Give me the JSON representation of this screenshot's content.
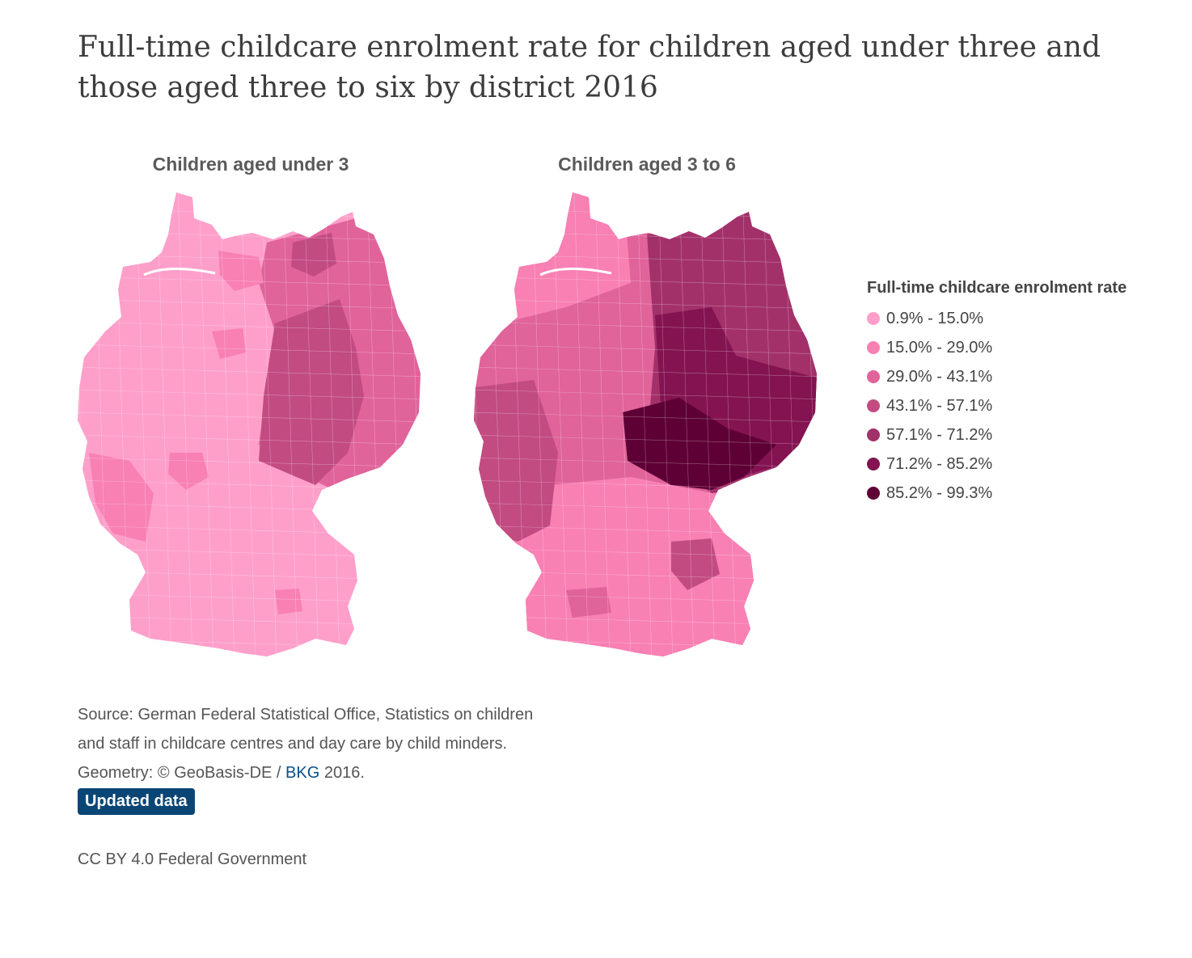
{
  "title": "Full-time childcare enrolment rate for children aged under three and those aged three to six by district 2016",
  "maps": [
    {
      "title": "Children aged under 3"
    },
    {
      "title": "Children aged 3 to 6"
    }
  ],
  "legend": {
    "title": "Full-time childcare enrolment rate",
    "items": [
      {
        "label": "0.9% - 15.0%",
        "color": "#fe9fca"
      },
      {
        "label": "15.0% - 29.0%",
        "color": "#f880b3"
      },
      {
        "label": "29.0% - 43.1%",
        "color": "#e0639a"
      },
      {
        "label": "43.1% - 57.1%",
        "color": "#c24b82"
      },
      {
        "label": "57.1% - 71.2%",
        "color": "#a2316a"
      },
      {
        "label": "71.2% - 85.2%",
        "color": "#831351"
      },
      {
        "label": "85.2% - 99.3%",
        "color": "#5e0035"
      }
    ]
  },
  "source": {
    "line1": "Source: German Federal Statistical Office, Statistics on children",
    "line2": "and staff in childcare centres and day care by child minders.",
    "line3_prefix": "Geometry: © GeoBasis-DE / ",
    "line3_link": "BKG",
    "line3_suffix": " 2016."
  },
  "badge": "Updated data",
  "license": "CC BY 4.0 Federal Government",
  "map_regions": {
    "under3": [
      {
        "region": "west",
        "class_index": 0
      },
      {
        "region": "northwest",
        "class_index": 0
      },
      {
        "region": "schleswig",
        "class_index": 0
      },
      {
        "region": "south",
        "class_index": 0
      },
      {
        "region": "east",
        "class_index": 3
      },
      {
        "region": "east-core",
        "class_index": 4
      },
      {
        "region": "hamburg",
        "class_index": 1
      },
      {
        "region": "rhine",
        "class_index": 1
      }
    ],
    "age3to6": [
      {
        "region": "west",
        "class_index": 2
      },
      {
        "region": "northwest",
        "class_index": 1
      },
      {
        "region": "schleswig",
        "class_index": 1
      },
      {
        "region": "south",
        "class_index": 1
      },
      {
        "region": "rhineland",
        "class_index": 3
      },
      {
        "region": "east-north",
        "class_index": 4
      },
      {
        "region": "east-mid",
        "class_index": 5
      },
      {
        "region": "east-core",
        "class_index": 6
      }
    ]
  }
}
